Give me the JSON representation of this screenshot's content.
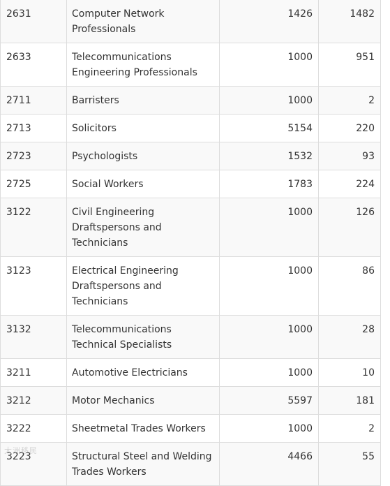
{
  "table": {
    "rows": [
      {
        "code": "2631",
        "name": "Computer Network Professionals",
        "v1": "1426",
        "v2": "1482"
      },
      {
        "code": "2633",
        "name": "Telecommunications Engineering Professionals",
        "v1": "1000",
        "v2": "951"
      },
      {
        "code": "2711",
        "name": "Barristers",
        "v1": "1000",
        "v2": "2"
      },
      {
        "code": "2713",
        "name": "Solicitors",
        "v1": "5154",
        "v2": "220"
      },
      {
        "code": "2723",
        "name": "Psychologists",
        "v1": "1532",
        "v2": "93"
      },
      {
        "code": "2725",
        "name": "Social Workers",
        "v1": "1783",
        "v2": "224"
      },
      {
        "code": "3122",
        "name": "Civil Engineering Draftspersons and Technicians",
        "v1": "1000",
        "v2": "126"
      },
      {
        "code": "3123",
        "name": "Electrical Engineering Draftspersons and Technicians",
        "v1": "1000",
        "v2": "86"
      },
      {
        "code": "3132",
        "name": "Telecommunications Technical Specialists",
        "v1": "1000",
        "v2": "28"
      },
      {
        "code": "3211",
        "name": "Automotive Electricians",
        "v1": "1000",
        "v2": "10"
      },
      {
        "code": "3212",
        "name": "Motor Mechanics",
        "v1": "5597",
        "v2": "181"
      },
      {
        "code": "3222",
        "name": "Sheetmetal Trades Workers",
        "v1": "1000",
        "v2": "2"
      },
      {
        "code": "3223",
        "name": "Structural Steel and Welding Trades Workers",
        "v1": "4466",
        "v2": "55"
      }
    ]
  },
  "watermark": "大洲移民"
}
